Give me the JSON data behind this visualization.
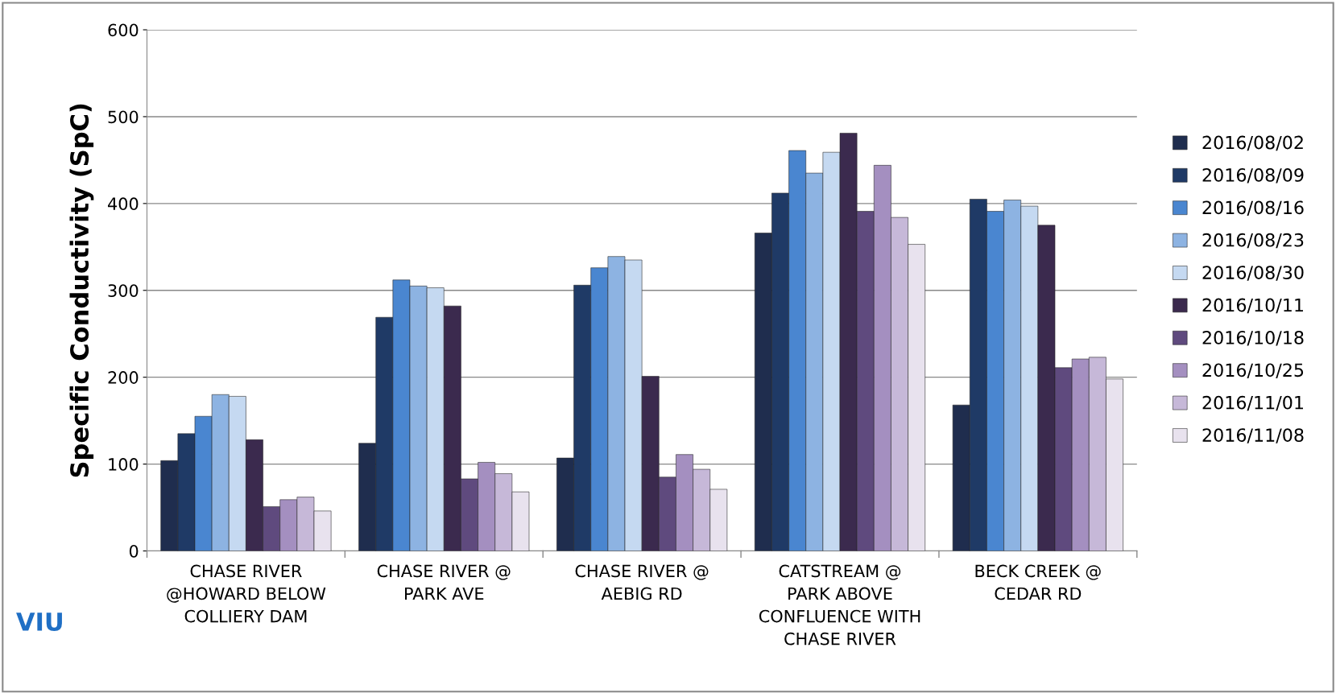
{
  "chart_data": {
    "type": "bar",
    "ylabel": "Specific Conductivity (SpC)",
    "categories": [
      "CHASE RIVER\n@HOWARD BELOW\nCOLLIERY DAM",
      "CHASE RIVER @\nPARK AVE",
      "CHASE RIVER @\nAEBIG RD",
      "CATSTREAM @\nPARK ABOVE\nCONFLUENCE WITH\nCHASE RIVER",
      "BECK CREEK @\nCEDAR RD"
    ],
    "series": [
      {
        "name": "2016/08/02",
        "color": "#1f2d4e",
        "values": [
          104,
          124,
          107,
          366,
          168
        ]
      },
      {
        "name": "2016/08/09",
        "color": "#1f3a66",
        "values": [
          135,
          269,
          306,
          412,
          405
        ]
      },
      {
        "name": "2016/08/16",
        "color": "#4a86d0",
        "values": [
          155,
          312,
          326,
          461,
          391
        ]
      },
      {
        "name": "2016/08/23",
        "color": "#8db3e2",
        "values": [
          180,
          305,
          339,
          435,
          404
        ]
      },
      {
        "name": "2016/08/30",
        "color": "#c5d9f1",
        "values": [
          178,
          303,
          335,
          459,
          397
        ]
      },
      {
        "name": "2016/10/11",
        "color": "#3b2a4e",
        "values": [
          128,
          282,
          201,
          481,
          375
        ]
      },
      {
        "name": "2016/10/18",
        "color": "#5f4a7e",
        "values": [
          51,
          83,
          85,
          391,
          211
        ]
      },
      {
        "name": "2016/10/25",
        "color": "#a48fc0",
        "values": [
          59,
          102,
          111,
          444,
          221
        ]
      },
      {
        "name": "2016/11/01",
        "color": "#c6b8d8",
        "values": [
          62,
          89,
          94,
          384,
          223
        ]
      },
      {
        "name": "2016/11/08",
        "color": "#e8e2ee",
        "values": [
          46,
          68,
          71,
          353,
          198
        ]
      }
    ],
    "ylim": [
      0,
      600
    ],
    "yticks": [
      0,
      100,
      200,
      300,
      400,
      500,
      600
    ],
    "grid": "y",
    "legend": "right",
    "annotations": [
      "VIU"
    ]
  }
}
